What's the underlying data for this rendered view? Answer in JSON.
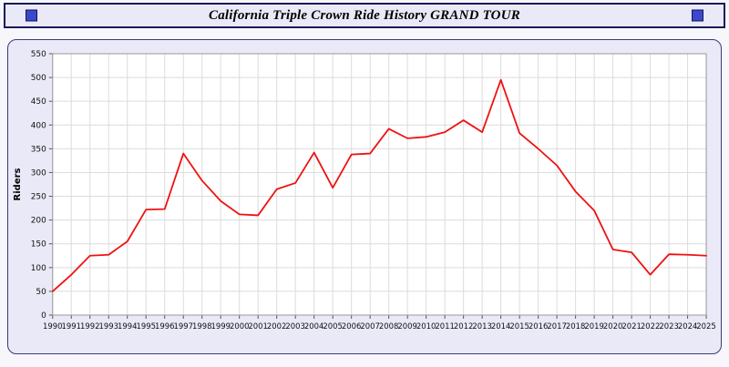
{
  "header": {
    "title": "California Triple Crown Ride History GRAND TOUR"
  },
  "colors": {
    "panel_background": "#e9e9f8",
    "panel_border": "#3a3a78",
    "titlebar_border": "#191959",
    "corner_square": "#3a49cc",
    "grid_line": "#dcdcdc",
    "axis_line": "#999999",
    "series_line": "#ee1111"
  },
  "chart_data": {
    "type": "line",
    "title": "California Triple Crown Ride History GRAND TOUR",
    "xlabel": "",
    "ylabel": "Riders",
    "ylim": [
      0,
      550
    ],
    "ytick_step": 50,
    "grid": true,
    "legend": "none",
    "line_color": "#ee1111",
    "categories": [
      "1990",
      "1991",
      "1992",
      "1993",
      "1994",
      "1995",
      "1996",
      "1997",
      "1998",
      "1999",
      "2000",
      "2001",
      "2002",
      "2003",
      "2004",
      "2005",
      "2006",
      "2007",
      "2008",
      "2009",
      "2010",
      "2011",
      "2012",
      "2013",
      "2014",
      "2015",
      "2016",
      "2017",
      "2018",
      "2019",
      "2020",
      "2021",
      "2022",
      "2023",
      "2024",
      "2025"
    ],
    "values": [
      50,
      85,
      125,
      127,
      155,
      222,
      223,
      340,
      283,
      240,
      212,
      210,
      265,
      278,
      342,
      268,
      338,
      340,
      392,
      372,
      375,
      385,
      410,
      385,
      495,
      383,
      350,
      315,
      260,
      220,
      138,
      132,
      85,
      128,
      127,
      125
    ]
  }
}
